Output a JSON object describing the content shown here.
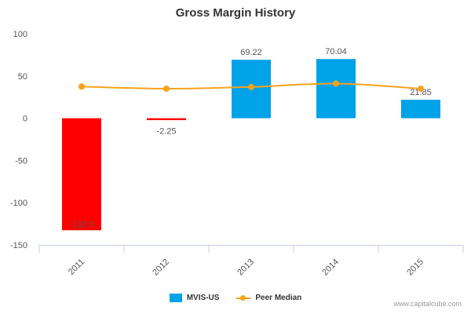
{
  "chart_data": {
    "type": "bar",
    "title": "Gross Margin History",
    "categories": [
      "2011",
      "2012",
      "2013",
      "2014",
      "2015"
    ],
    "series": [
      {
        "name": "MVIS-US",
        "kind": "bar",
        "values": [
          -132.6,
          -2.25,
          69.22,
          70.04,
          21.85
        ],
        "labels": [
          "-132.6",
          "-2.25",
          "69.22",
          "70.04",
          "21.85"
        ],
        "colors": [
          "#ff0000",
          "#ff0000",
          "#00a2e8",
          "#00a2e8",
          "#00a2e8"
        ],
        "color": "#00a2e8"
      },
      {
        "name": "Peer Median",
        "kind": "line",
        "values": [
          37.5,
          35.0,
          37.0,
          41.0,
          35.0
        ],
        "color": "#f6a21e"
      }
    ],
    "ylim": [
      -150,
      100
    ],
    "yticks": [
      100,
      50,
      0,
      -50,
      -100,
      -150
    ],
    "xlabel": "",
    "ylabel": "",
    "legend_position": "bottom",
    "grid": false
  },
  "watermark": "www.capitalcube.com"
}
